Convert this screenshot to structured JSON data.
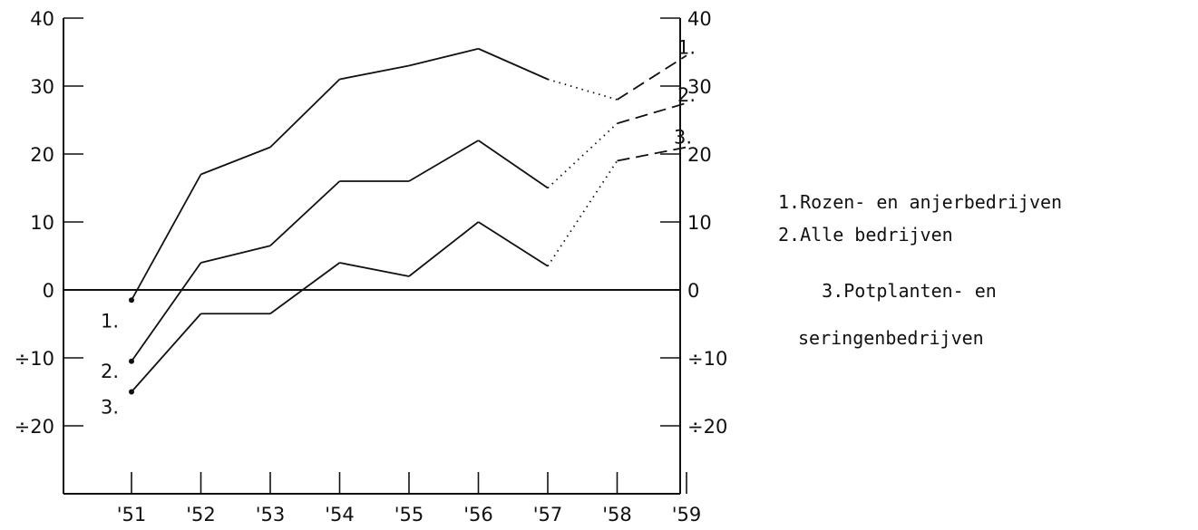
{
  "chart_data": {
    "type": "line",
    "x": [
      "'51",
      "'52",
      "'53",
      "'54",
      "'55",
      "'56",
      "'57",
      "'58",
      "'59"
    ],
    "ylim": [
      -30,
      40
    ],
    "yticks": [
      40,
      30,
      20,
      10,
      0,
      -10,
      -20
    ],
    "ytick_labels": [
      "40",
      "30",
      "20",
      "10",
      "0",
      "÷10",
      "÷20"
    ],
    "series": [
      {
        "name": "1.Rozen- en anjerbedrijven",
        "start_label": "1.",
        "end_label": "1.",
        "values": [
          -1.5,
          17,
          21,
          31,
          33,
          35.5,
          31,
          28,
          34.5
        ],
        "segment_styles": [
          "solid",
          "solid",
          "solid",
          "solid",
          "solid",
          "solid",
          "dotted",
          "dashed"
        ]
      },
      {
        "name": "2.Alle bedrijven",
        "start_label": "2.",
        "end_label": "2.",
        "values": [
          -10.5,
          4,
          6.5,
          16,
          16,
          22,
          15,
          24.5,
          27.5
        ],
        "segment_styles": [
          "solid",
          "solid",
          "solid",
          "solid",
          "solid",
          "solid",
          "dotted",
          "dashed"
        ]
      },
      {
        "name": "3.Potplanten- en seringenbedrijven",
        "name_lines": [
          "3.Potplanten- en",
          "seringenbedrijven"
        ],
        "start_label": "3.",
        "end_label": "3.",
        "values": [
          -15,
          -3.5,
          -3.5,
          4,
          2,
          10,
          3.5,
          19,
          21
        ],
        "segment_styles": [
          "solid",
          "solid",
          "solid",
          "solid",
          "solid",
          "solid",
          "dotted",
          "dashed"
        ]
      }
    ],
    "legend_position": "right",
    "grid": false
  }
}
